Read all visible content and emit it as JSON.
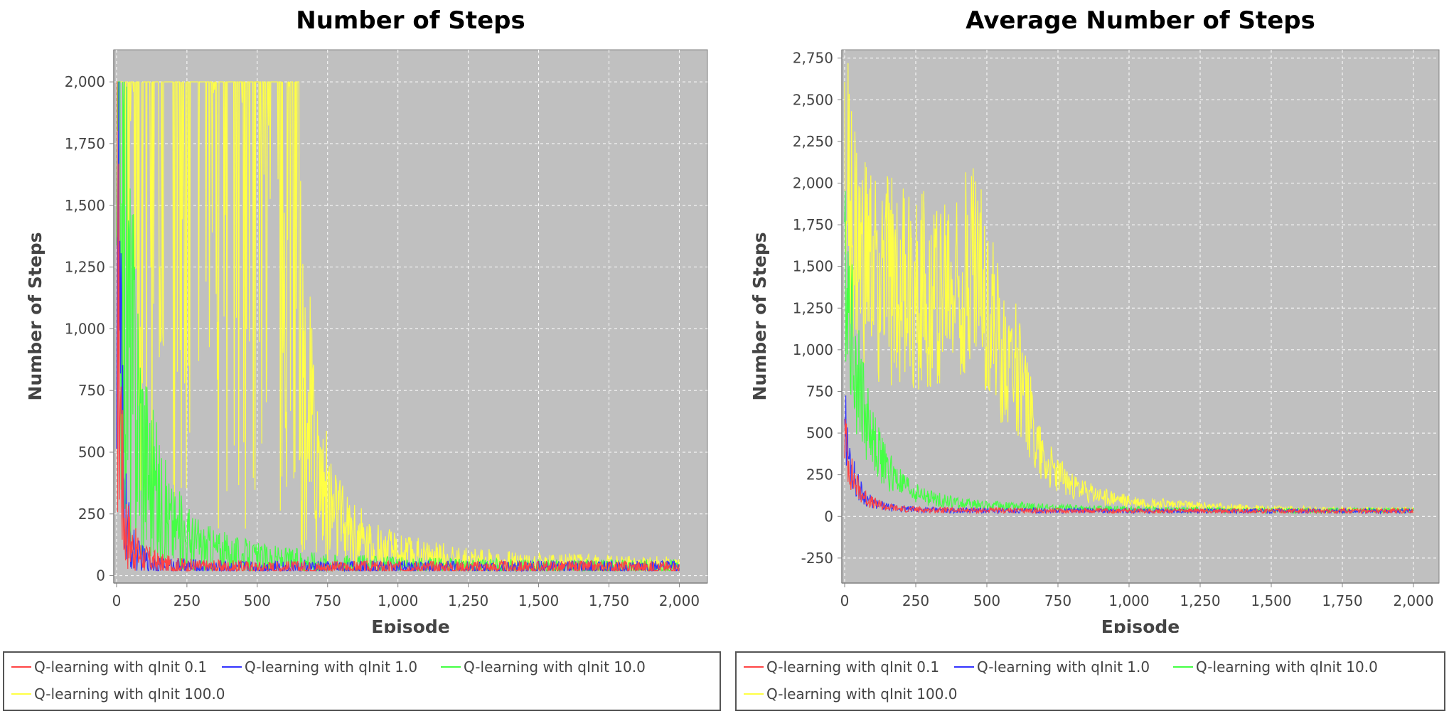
{
  "chart_data": [
    {
      "type": "line",
      "title": "Number of Steps",
      "xlabel": "Episode",
      "ylabel": "Number of Steps",
      "xlim": [
        0,
        2000
      ],
      "ylim": [
        0,
        2000
      ],
      "xticks": [
        "0",
        "250",
        "500",
        "750",
        "1,000",
        "1,250",
        "1,500",
        "1,750",
        "2,000"
      ],
      "yticks": [
        "0",
        "250",
        "500",
        "750",
        "1,000",
        "1,250",
        "1,500",
        "1,750",
        "2,000"
      ],
      "grid": true,
      "legend_position": "bottom",
      "series": [
        {
          "name": "Q-learning with qInit 0.1",
          "color": "#ff4444",
          "x": [
            0,
            25,
            50,
            75,
            100,
            150,
            200,
            300,
            500,
            1000,
            1500,
            2000
          ],
          "y": [
            1300,
            250,
            130,
            90,
            70,
            50,
            40,
            35,
            32,
            32,
            32,
            32
          ]
        },
        {
          "name": "Q-learning with qInit 1.0",
          "color": "#3333ff",
          "x": [
            0,
            25,
            50,
            75,
            100,
            150,
            200,
            300,
            500,
            1000,
            1500,
            2000
          ],
          "y": [
            1700,
            300,
            120,
            80,
            60,
            45,
            38,
            35,
            32,
            32,
            32,
            32
          ]
        },
        {
          "name": "Q-learning with qInit 10.0",
          "color": "#44ff44",
          "x": [
            0,
            25,
            50,
            75,
            100,
            150,
            200,
            300,
            400,
            500,
            750,
            1000,
            1500,
            2000
          ],
          "y": [
            1900,
            1300,
            900,
            700,
            500,
            300,
            200,
            120,
            90,
            70,
            50,
            40,
            35,
            35
          ]
        },
        {
          "name": "Q-learning with qInit 100.0",
          "color": "#ffff44",
          "x": [
            0,
            100,
            200,
            300,
            400,
            500,
            550,
            600,
            650,
            700,
            750,
            800,
            900,
            1000,
            1250,
            1500,
            1750,
            2000
          ],
          "y": [
            2000,
            2000,
            2000,
            1900,
            1800,
            1700,
            1500,
            1300,
            900,
            500,
            300,
            200,
            120,
            90,
            60,
            50,
            45,
            40
          ]
        }
      ]
    },
    {
      "type": "line",
      "title": "Average Number of Steps",
      "xlabel": "Episode",
      "ylabel": "Number of Steps",
      "xlim": [
        0,
        2000
      ],
      "ylim": [
        -400,
        2800
      ],
      "xticks": [
        "0",
        "250",
        "500",
        "750",
        "1,000",
        "1,250",
        "1,500",
        "1,750",
        "2,000"
      ],
      "yticks": [
        "-250",
        "0",
        "250",
        "500",
        "750",
        "1,000",
        "1,250",
        "1,500",
        "1,750",
        "2,000",
        "2,250",
        "2,500",
        "2,750"
      ],
      "grid": true,
      "legend_position": "bottom",
      "series": [
        {
          "name": "Q-learning with qInit 0.1",
          "color": "#ff4444",
          "x": [
            0,
            10,
            25,
            50,
            75,
            100,
            150,
            200,
            300,
            500,
            1000,
            1500,
            2000
          ],
          "y": [
            500,
            350,
            250,
            160,
            110,
            80,
            55,
            45,
            38,
            35,
            33,
            32,
            32
          ]
        },
        {
          "name": "Q-learning with qInit 1.0",
          "color": "#3333ff",
          "x": [
            0,
            10,
            25,
            50,
            75,
            100,
            150,
            200,
            300,
            500,
            1000,
            1500,
            2000
          ],
          "y": [
            650,
            400,
            280,
            170,
            110,
            80,
            55,
            45,
            38,
            35,
            33,
            32,
            32
          ]
        },
        {
          "name": "Q-learning with qInit 10.0",
          "color": "#44ff44",
          "x": [
            0,
            10,
            25,
            50,
            75,
            100,
            150,
            200,
            250,
            300,
            400,
            500,
            750,
            1000,
            1500,
            2000
          ],
          "y": [
            1600,
            1400,
            1100,
            800,
            600,
            450,
            280,
            190,
            140,
            110,
            80,
            65,
            50,
            42,
            36,
            35
          ]
        },
        {
          "name": "Q-learning with qInit 100.0",
          "color": "#ffff44",
          "x": [
            0,
            50,
            100,
            200,
            300,
            400,
            450,
            500,
            550,
            600,
            650,
            700,
            750,
            800,
            900,
            1000,
            1250,
            1500,
            1750,
            2000
          ],
          "y": [
            2000,
            1500,
            1450,
            1400,
            1350,
            1400,
            1550,
            1250,
            1000,
            900,
            600,
            350,
            250,
            180,
            120,
            90,
            60,
            45,
            40,
            38
          ]
        }
      ]
    }
  ]
}
